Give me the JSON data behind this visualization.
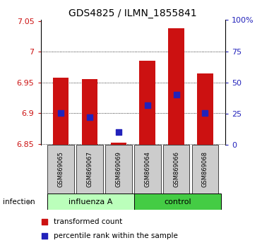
{
  "title": "GDS4825 / ILMN_1855841",
  "samples": [
    "GSM869065",
    "GSM869067",
    "GSM869069",
    "GSM869064",
    "GSM869066",
    "GSM869068"
  ],
  "group_labels": [
    "influenza A",
    "control"
  ],
  "factor_label": "infection",
  "ylim": [
    6.848,
    7.052
  ],
  "yticks": [
    6.85,
    6.9,
    6.95,
    7.0,
    7.05
  ],
  "ytick_labels": [
    "6.85",
    "6.9",
    "6.95",
    "7",
    "7.05"
  ],
  "y2ticks_pct": [
    0,
    25,
    50,
    75,
    100
  ],
  "y2tick_labels": [
    "0",
    "25",
    "50",
    "75",
    "100%"
  ],
  "red_bars_bottom": [
    6.848,
    6.848,
    6.848,
    6.848,
    6.848,
    6.848
  ],
  "red_bars_top": [
    6.958,
    6.956,
    6.852,
    6.985,
    7.038,
    6.965
  ],
  "blue_dots_y": [
    6.9,
    6.893,
    6.869,
    6.913,
    6.93,
    6.9
  ],
  "blue_dot_size": 28,
  "bar_width": 0.55,
  "red_color": "#cc1111",
  "blue_color": "#2222bb",
  "bg_plot": "#ffffff",
  "sample_bg": "#cccccc",
  "group1_color": "#bbffbb",
  "group2_color": "#44cc44",
  "legend_red_label": "transformed count",
  "legend_blue_label": "percentile rank within the sample",
  "title_fontsize": 10,
  "tick_fontsize": 8,
  "sample_fontsize": 6,
  "group_fontsize": 8,
  "legend_fontsize": 7.5,
  "infection_fontsize": 7.5
}
